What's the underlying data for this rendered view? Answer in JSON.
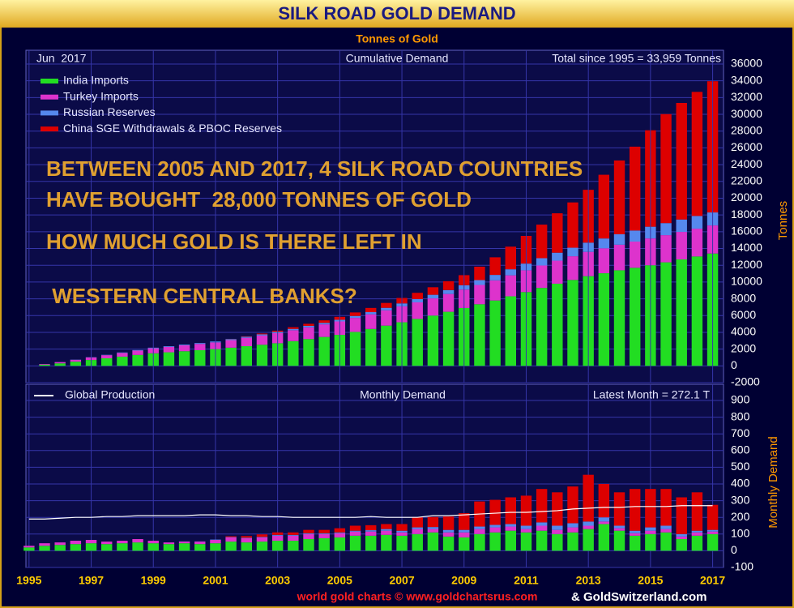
{
  "chart_data": [
    {
      "type": "bar",
      "stacked": true,
      "title": "SILK ROAD GOLD DEMAND",
      "subtitle": "Tonnes of Gold",
      "ylabel": "Tonnes",
      "date_label": "Jun  2017",
      "panel_label": "Cumulative Demand",
      "total_label": "Total since 1995 = 33,959 Tonnes",
      "annotations": [
        "BETWEEN 2005 AND 2017, 4 SILK ROAD COUNTRIES",
        "HAVE BOUGHT  28,000 TONNES OF GOLD",
        "HOW MUCH GOLD IS THERE LEFT IN",
        " WESTERN CENTRAL BANKS?"
      ],
      "xlim": [
        1994.9,
        2017.35
      ],
      "x": [
        1995,
        1995.5,
        1996,
        1996.5,
        1997,
        1997.5,
        1998,
        1998.5,
        1999,
        1999.5,
        2000,
        2000.5,
        2001,
        2001.5,
        2002,
        2002.5,
        2003,
        2003.5,
        2004,
        2004.5,
        2005,
        2005.5,
        2006,
        2006.5,
        2007,
        2007.5,
        2008,
        2008.5,
        2009,
        2009.5,
        2010,
        2010.5,
        2011,
        2011.5,
        2012,
        2012.5,
        2013,
        2013.5,
        2014,
        2014.5,
        2015,
        2015.5,
        2016,
        2016.5,
        2017
      ],
      "ylim": [
        -2000,
        36000
      ],
      "yticks": [
        -2000,
        0,
        2000,
        4000,
        6000,
        8000,
        10000,
        12000,
        14000,
        16000,
        18000,
        20000,
        22000,
        24000,
        26000,
        28000,
        30000,
        32000,
        34000,
        36000
      ],
      "grid": true,
      "series": [
        {
          "name": "India Imports",
          "color": "#22dd22",
          "values": [
            0,
            150,
            300,
            500,
            700,
            900,
            1100,
            1300,
            1500,
            1620,
            1750,
            1870,
            2000,
            2170,
            2350,
            2520,
            2700,
            2950,
            3200,
            3450,
            3700,
            4050,
            4400,
            4800,
            5200,
            5600,
            6000,
            6450,
            6900,
            7350,
            7800,
            8300,
            8800,
            9300,
            9800,
            10250,
            10700,
            11050,
            11400,
            11700,
            12000,
            12350,
            12700,
            13050,
            13400
          ]
        },
        {
          "name": "Turkey Imports",
          "color": "#dd33cc",
          "values": [
            0,
            75,
            150,
            225,
            300,
            375,
            450,
            525,
            600,
            650,
            700,
            750,
            800,
            900,
            1000,
            1100,
            1200,
            1300,
            1400,
            1500,
            1600,
            1675,
            1750,
            1825,
            1900,
            1975,
            2050,
            2125,
            2200,
            2300,
            2400,
            2500,
            2600,
            2675,
            2750,
            2825,
            2900,
            2975,
            3050,
            3125,
            3200,
            3240,
            3280,
            3315,
            3350
          ]
        },
        {
          "name": "Russian Reserves",
          "color": "#5588ee",
          "values": [
            0,
            0,
            10,
            20,
            30,
            40,
            50,
            60,
            70,
            80,
            90,
            100,
            110,
            120,
            130,
            140,
            150,
            160,
            170,
            180,
            200,
            230,
            260,
            300,
            350,
            390,
            430,
            470,
            520,
            580,
            650,
            720,
            800,
            870,
            950,
            1020,
            1100,
            1170,
            1250,
            1320,
            1400,
            1440,
            1480,
            1515,
            1550
          ]
        },
        {
          "name": "China SGE Withdrawals & PBOC Reserves",
          "color": "#dd0000",
          "values": [
            0,
            0,
            0,
            0,
            0,
            0,
            0,
            0,
            0,
            0,
            0,
            0,
            0,
            20,
            50,
            100,
            150,
            200,
            250,
            300,
            350,
            420,
            500,
            580,
            650,
            750,
            900,
            1050,
            1200,
            1600,
            2100,
            2700,
            3300,
            4000,
            4700,
            5400,
            6300,
            7600,
            8800,
            10000,
            11500,
            13000,
            13900,
            14800,
            15650
          ]
        }
      ]
    },
    {
      "type": "bar",
      "stacked": true,
      "ylabel": "Monthly Demand",
      "panel_label": "Monthly Demand",
      "latest_label": "Latest Month = 272.1 T",
      "xlim": [
        1994.9,
        2017.35
      ],
      "x": [
        1995,
        1995.5,
        1996,
        1996.5,
        1997,
        1997.5,
        1998,
        1998.5,
        1999,
        1999.5,
        2000,
        2000.5,
        2001,
        2001.5,
        2002,
        2002.5,
        2003,
        2003.5,
        2004,
        2004.5,
        2005,
        2005.5,
        2006,
        2006.5,
        2007,
        2007.5,
        2008,
        2008.5,
        2009,
        2009.5,
        2010,
        2010.5,
        2011,
        2011.5,
        2012,
        2012.5,
        2013,
        2013.5,
        2014,
        2014.5,
        2015,
        2015.5,
        2016,
        2016.5,
        2017
      ],
      "xticks": [
        1995,
        1997,
        1999,
        2001,
        2003,
        2005,
        2007,
        2009,
        2011,
        2013,
        2015,
        2017
      ],
      "ylim": [
        -100,
        900
      ],
      "yticks": [
        -100,
        0,
        100,
        200,
        300,
        400,
        500,
        600,
        700,
        800,
        900
      ],
      "grid": true,
      "series": [
        {
          "color": "#22dd22",
          "values": [
            20,
            30,
            35,
            40,
            45,
            40,
            45,
            50,
            45,
            40,
            45,
            40,
            45,
            55,
            50,
            55,
            60,
            60,
            70,
            75,
            80,
            90,
            90,
            95,
            90,
            100,
            110,
            85,
            80,
            100,
            110,
            120,
            110,
            120,
            100,
            110,
            130,
            160,
            120,
            90,
            100,
            110,
            70,
            90,
            100
          ]
        },
        {
          "color": "#dd33cc",
          "values": [
            10,
            15,
            15,
            20,
            20,
            15,
            15,
            20,
            15,
            10,
            10,
            15,
            20,
            25,
            25,
            25,
            30,
            30,
            30,
            25,
            25,
            25,
            25,
            25,
            20,
            30,
            20,
            25,
            30,
            30,
            30,
            25,
            20,
            30,
            25,
            30,
            20,
            15,
            15,
            15,
            20,
            20,
            15,
            20,
            15
          ]
        },
        {
          "color": "#5588ee",
          "values": [
            0,
            0,
            0,
            0,
            0,
            0,
            0,
            0,
            0,
            0,
            1,
            1,
            2,
            2,
            3,
            3,
            5,
            5,
            5,
            5,
            5,
            5,
            8,
            10,
            10,
            10,
            12,
            15,
            15,
            15,
            15,
            15,
            20,
            20,
            25,
            25,
            25,
            25,
            15,
            15,
            20,
            20,
            15,
            10,
            10
          ]
        },
        {
          "color": "#dd0000",
          "values": [
            0,
            0,
            0,
            0,
            0,
            0,
            0,
            0,
            0,
            0,
            0,
            0,
            0,
            5,
            10,
            15,
            15,
            15,
            20,
            20,
            25,
            30,
            30,
            30,
            40,
            60,
            60,
            80,
            100,
            150,
            150,
            160,
            180,
            200,
            200,
            220,
            280,
            200,
            200,
            250,
            230,
            220,
            220,
            230,
            150
          ]
        },
        {
          "name": "Global Production",
          "type": "line",
          "color": "#ffffff",
          "values": [
            190,
            190,
            195,
            200,
            200,
            205,
            205,
            210,
            210,
            210,
            210,
            215,
            215,
            210,
            210,
            205,
            205,
            200,
            200,
            200,
            200,
            200,
            205,
            200,
            200,
            200,
            210,
            210,
            215,
            220,
            225,
            230,
            230,
            235,
            240,
            250,
            255,
            260,
            260,
            265,
            265,
            265,
            270,
            270,
            270
          ]
        }
      ]
    }
  ],
  "footer": [
    "world gold charts © www.goldchartsrus.com",
    "& GoldSwitzerland.com"
  ]
}
